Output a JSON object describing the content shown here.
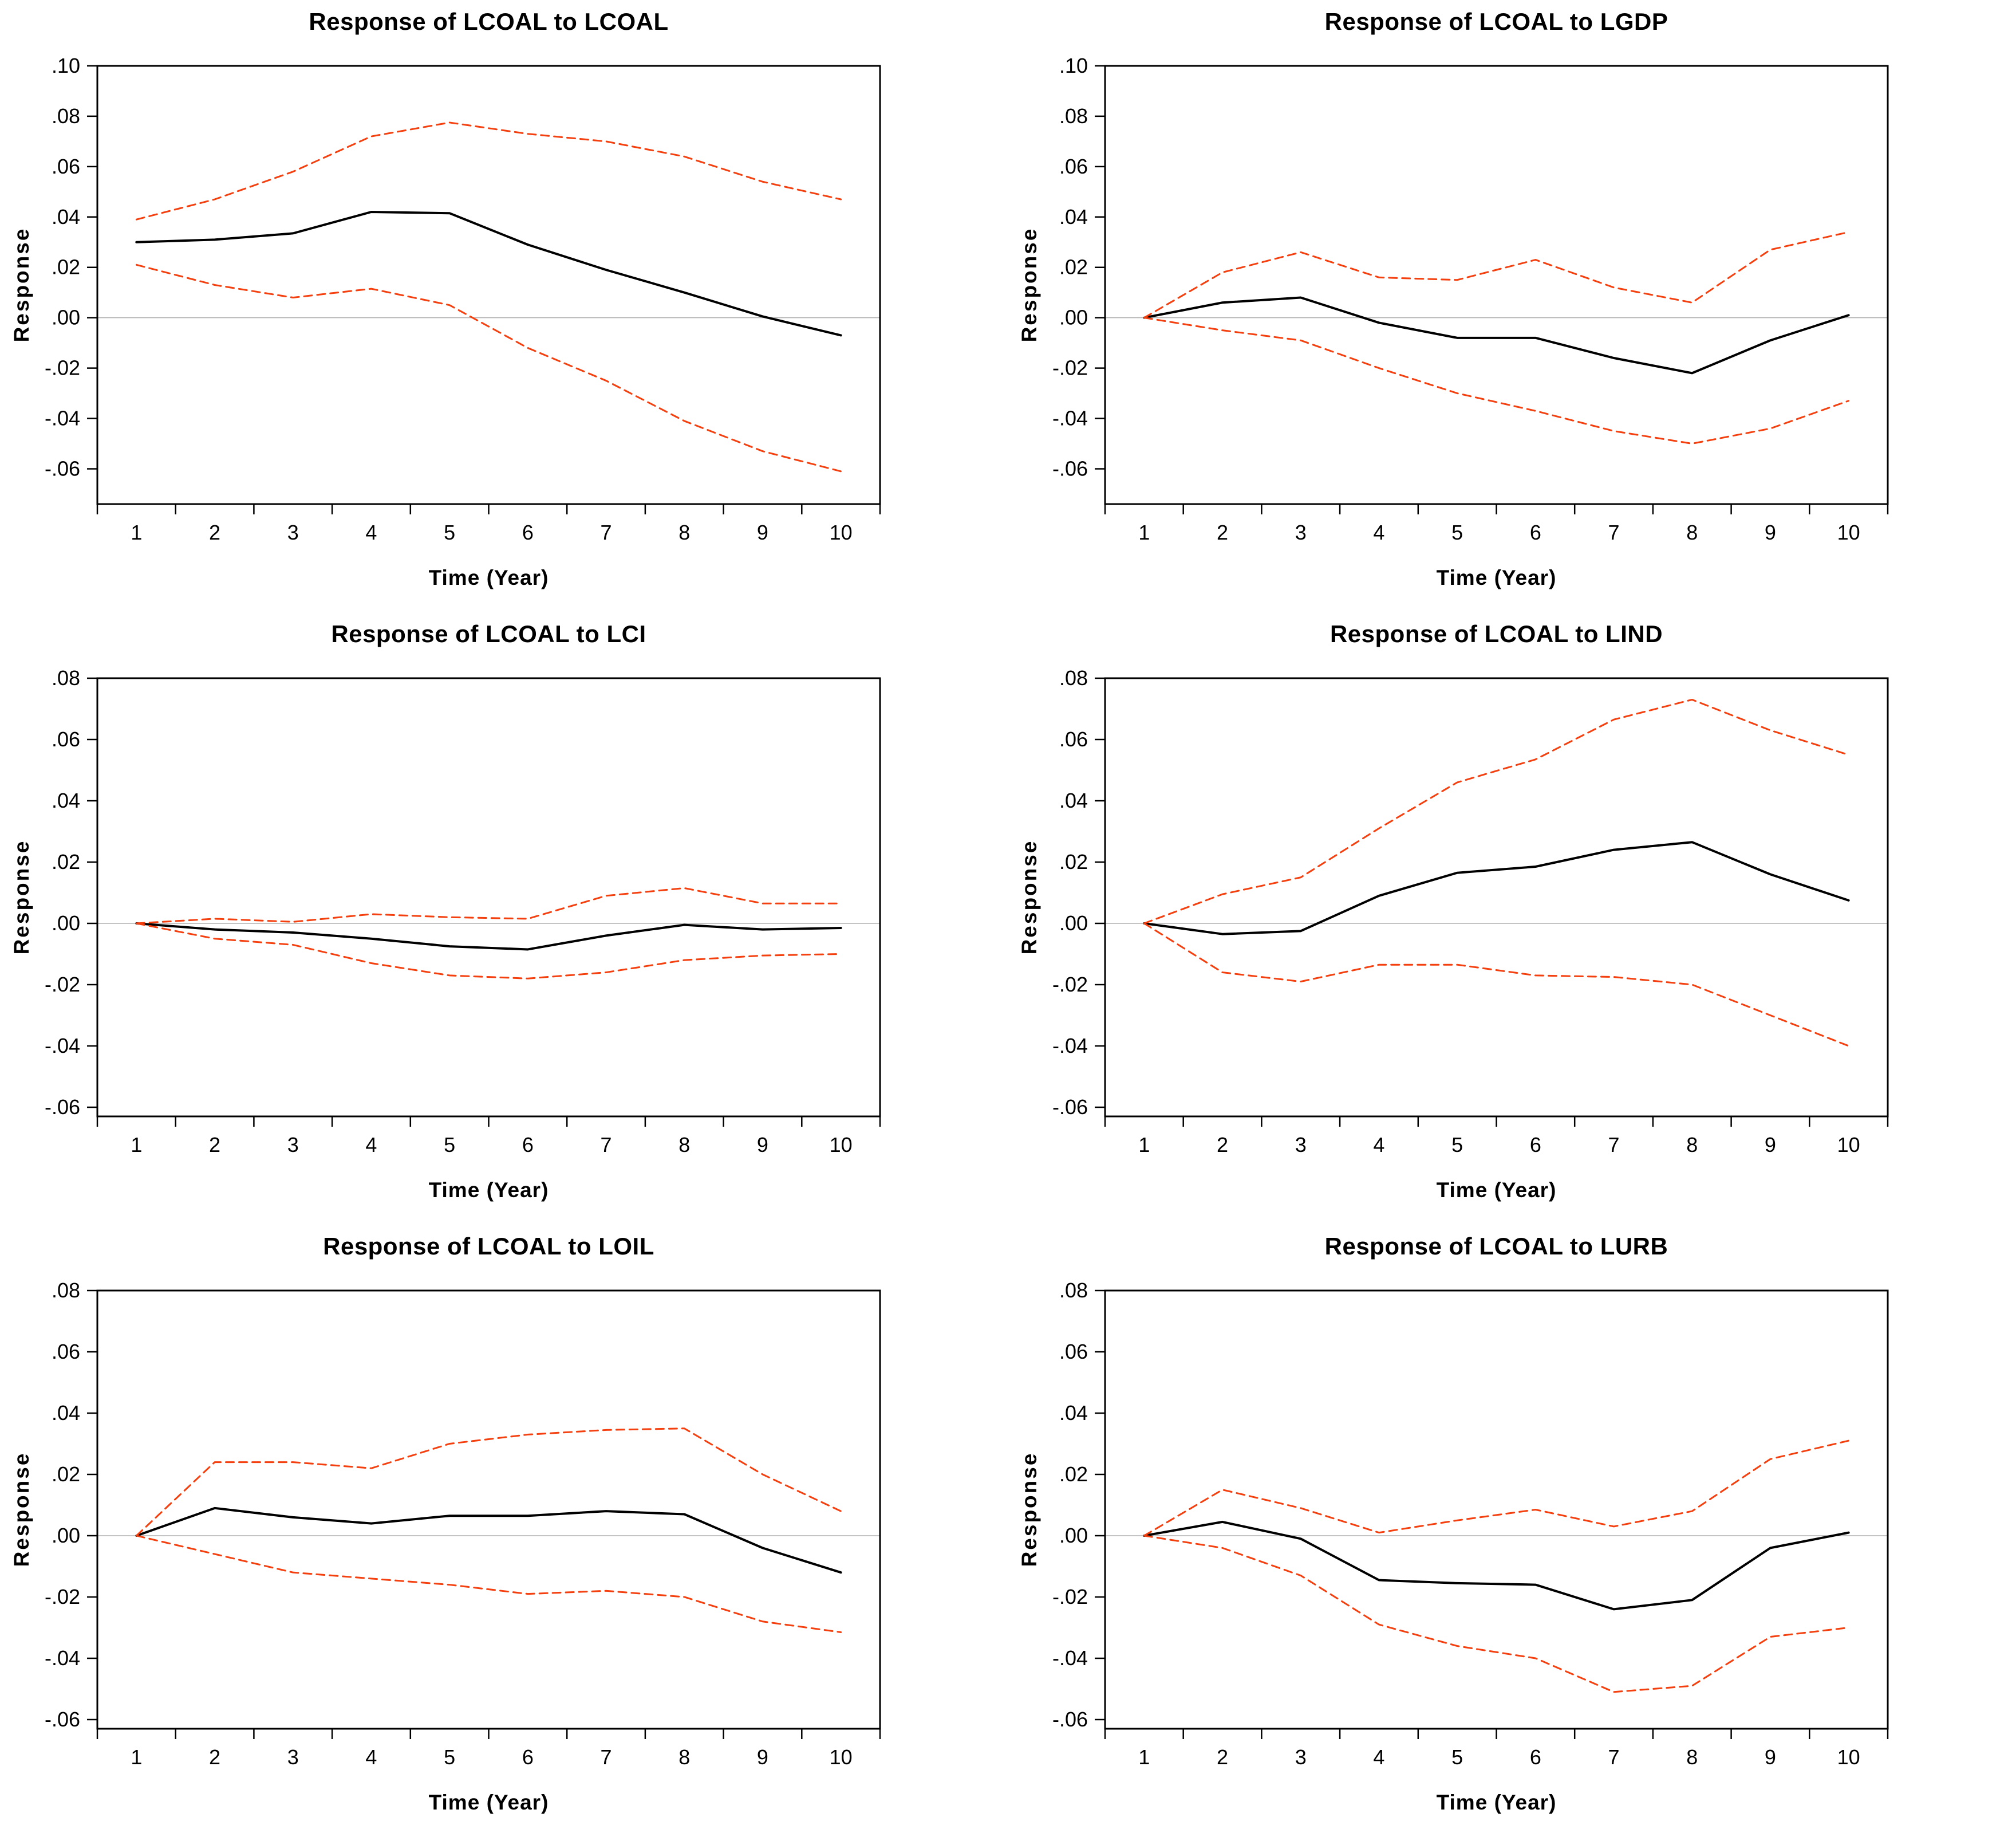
{
  "figure": {
    "ylabel": "Response",
    "xlabel": "Time (Year)",
    "colors": {
      "estimate_line": "#000000",
      "confidence_band": "#f43f0f",
      "zero_line": "#b0b0b0",
      "frame": "#000000",
      "background": "#ffffff"
    }
  },
  "chart_data": [
    {
      "type": "line",
      "title": "Response of LCOAL to LCOAL",
      "xlabel": "Time (Year)",
      "ylabel": "Response",
      "categories": [
        "1",
        "2",
        "3",
        "4",
        "5",
        "6",
        "7",
        "8",
        "9",
        "10"
      ],
      "x": [
        1,
        2,
        3,
        4,
        5,
        6,
        7,
        8,
        9,
        10
      ],
      "ylim": [
        -0.074,
        0.1
      ],
      "yticks": [
        0.1,
        0.08,
        0.06,
        0.04,
        0.02,
        0.0,
        -0.02,
        -0.04,
        -0.06
      ],
      "ytick_labels": [
        ".10",
        ".08",
        ".06",
        ".04",
        ".02",
        ".00",
        "-.02",
        "-.04",
        "-.06"
      ],
      "grid": false,
      "legend": "none",
      "series": [
        {
          "name": "estimate",
          "color": "#000000",
          "dashed": false,
          "values": [
            0.03,
            0.031,
            0.0335,
            0.042,
            0.0415,
            0.029,
            0.019,
            0.01,
            0.0005,
            -0.007
          ]
        },
        {
          "name": "upper_band",
          "color": "#f43f0f",
          "dashed": true,
          "values": [
            0.039,
            0.047,
            0.058,
            0.072,
            0.0775,
            0.073,
            0.07,
            0.064,
            0.054,
            0.047
          ]
        },
        {
          "name": "lower_band",
          "color": "#f43f0f",
          "dashed": true,
          "values": [
            0.021,
            0.013,
            0.008,
            0.0115,
            0.005,
            -0.012,
            -0.025,
            -0.041,
            -0.053,
            -0.061
          ]
        }
      ]
    },
    {
      "type": "line",
      "title": "Response of LCOAL to LGDP",
      "xlabel": "Time (Year)",
      "ylabel": "Response",
      "categories": [
        "1",
        "2",
        "3",
        "4",
        "5",
        "6",
        "7",
        "8",
        "9",
        "10"
      ],
      "x": [
        1,
        2,
        3,
        4,
        5,
        6,
        7,
        8,
        9,
        10
      ],
      "ylim": [
        -0.074,
        0.1
      ],
      "yticks": [
        0.1,
        0.08,
        0.06,
        0.04,
        0.02,
        0.0,
        -0.02,
        -0.04,
        -0.06
      ],
      "ytick_labels": [
        ".10",
        ".08",
        ".06",
        ".04",
        ".02",
        ".00",
        "-.02",
        "-.04",
        "-.06"
      ],
      "grid": false,
      "legend": "none",
      "series": [
        {
          "name": "estimate",
          "color": "#000000",
          "dashed": false,
          "values": [
            0.0,
            0.006,
            0.008,
            -0.002,
            -0.008,
            -0.008,
            -0.016,
            -0.022,
            -0.009,
            0.001
          ]
        },
        {
          "name": "upper_band",
          "color": "#f43f0f",
          "dashed": true,
          "values": [
            0.0,
            0.018,
            0.026,
            0.016,
            0.015,
            0.023,
            0.012,
            0.006,
            0.027,
            0.034
          ]
        },
        {
          "name": "lower_band",
          "color": "#f43f0f",
          "dashed": true,
          "values": [
            0.0,
            -0.005,
            -0.009,
            -0.02,
            -0.03,
            -0.037,
            -0.045,
            -0.05,
            -0.044,
            -0.033
          ]
        }
      ]
    },
    {
      "type": "line",
      "title": "Response of LCOAL to LCI",
      "xlabel": "Time (Year)",
      "ylabel": "Response",
      "categories": [
        "1",
        "2",
        "3",
        "4",
        "5",
        "6",
        "7",
        "8",
        "9",
        "10"
      ],
      "x": [
        1,
        2,
        3,
        4,
        5,
        6,
        7,
        8,
        9,
        10
      ],
      "ylim": [
        -0.063,
        0.08
      ],
      "yticks": [
        0.08,
        0.06,
        0.04,
        0.02,
        0.0,
        -0.02,
        -0.04,
        -0.06
      ],
      "ytick_labels": [
        ".08",
        ".06",
        ".04",
        ".02",
        ".00",
        "-.02",
        "-.04",
        "-.06"
      ],
      "grid": false,
      "legend": "none",
      "series": [
        {
          "name": "estimate",
          "color": "#000000",
          "dashed": false,
          "values": [
            0.0,
            -0.002,
            -0.003,
            -0.005,
            -0.0075,
            -0.0085,
            -0.004,
            -0.0005,
            -0.002,
            -0.0015
          ]
        },
        {
          "name": "upper_band",
          "color": "#f43f0f",
          "dashed": true,
          "values": [
            0.0,
            0.0015,
            0.0005,
            0.003,
            0.002,
            0.0015,
            0.009,
            0.0115,
            0.0065,
            0.0065
          ]
        },
        {
          "name": "lower_band",
          "color": "#f43f0f",
          "dashed": true,
          "values": [
            0.0,
            -0.005,
            -0.007,
            -0.013,
            -0.017,
            -0.018,
            -0.016,
            -0.012,
            -0.0105,
            -0.01
          ]
        }
      ]
    },
    {
      "type": "line",
      "title": "Response of LCOAL to LIND",
      "xlabel": "Time (Year)",
      "ylabel": "Response",
      "categories": [
        "1",
        "2",
        "3",
        "4",
        "5",
        "6",
        "7",
        "8",
        "9",
        "10"
      ],
      "x": [
        1,
        2,
        3,
        4,
        5,
        6,
        7,
        8,
        9,
        10
      ],
      "ylim": [
        -0.063,
        0.08
      ],
      "yticks": [
        0.08,
        0.06,
        0.04,
        0.02,
        0.0,
        -0.02,
        -0.04,
        -0.06
      ],
      "ytick_labels": [
        ".08",
        ".06",
        ".04",
        ".02",
        ".00",
        "-.02",
        "-.04",
        "-.06"
      ],
      "grid": false,
      "legend": "none",
      "series": [
        {
          "name": "estimate",
          "color": "#000000",
          "dashed": false,
          "values": [
            0.0,
            -0.0035,
            -0.0025,
            0.009,
            0.0165,
            0.0185,
            0.024,
            0.0265,
            0.016,
            0.0075
          ]
        },
        {
          "name": "upper_band",
          "color": "#f43f0f",
          "dashed": true,
          "values": [
            0.0,
            0.0095,
            0.015,
            0.031,
            0.046,
            0.0535,
            0.0665,
            0.073,
            0.063,
            0.055
          ]
        },
        {
          "name": "lower_band",
          "color": "#f43f0f",
          "dashed": true,
          "values": [
            0.0,
            -0.016,
            -0.019,
            -0.0135,
            -0.0135,
            -0.017,
            -0.0175,
            -0.02,
            -0.03,
            -0.04
          ]
        }
      ]
    },
    {
      "type": "line",
      "title": "Response of LCOAL to LOIL",
      "xlabel": "Time (Year)",
      "ylabel": "Response",
      "categories": [
        "1",
        "2",
        "3",
        "4",
        "5",
        "6",
        "7",
        "8",
        "9",
        "10"
      ],
      "x": [
        1,
        2,
        3,
        4,
        5,
        6,
        7,
        8,
        9,
        10
      ],
      "ylim": [
        -0.063,
        0.08
      ],
      "yticks": [
        0.08,
        0.06,
        0.04,
        0.02,
        0.0,
        -0.02,
        -0.04,
        -0.06
      ],
      "ytick_labels": [
        ".08",
        ".06",
        ".04",
        ".02",
        ".00",
        "-.02",
        "-.04",
        "-.06"
      ],
      "grid": false,
      "legend": "none",
      "series": [
        {
          "name": "estimate",
          "color": "#000000",
          "dashed": false,
          "values": [
            0.0,
            0.009,
            0.006,
            0.004,
            0.0065,
            0.0065,
            0.008,
            0.007,
            -0.004,
            -0.012
          ]
        },
        {
          "name": "upper_band",
          "color": "#f43f0f",
          "dashed": true,
          "values": [
            0.0,
            0.024,
            0.024,
            0.022,
            0.03,
            0.033,
            0.0345,
            0.035,
            0.02,
            0.008
          ]
        },
        {
          "name": "lower_band",
          "color": "#f43f0f",
          "dashed": true,
          "values": [
            0.0,
            -0.006,
            -0.012,
            -0.014,
            -0.016,
            -0.019,
            -0.018,
            -0.02,
            -0.028,
            -0.0315
          ]
        }
      ]
    },
    {
      "type": "line",
      "title": "Response of LCOAL to LURB",
      "xlabel": "Time (Year)",
      "ylabel": "Response",
      "categories": [
        "1",
        "2",
        "3",
        "4",
        "5",
        "6",
        "7",
        "8",
        "9",
        "10"
      ],
      "x": [
        1,
        2,
        3,
        4,
        5,
        6,
        7,
        8,
        9,
        10
      ],
      "ylim": [
        -0.063,
        0.08
      ],
      "yticks": [
        0.08,
        0.06,
        0.04,
        0.02,
        0.0,
        -0.02,
        -0.04,
        -0.06
      ],
      "ytick_labels": [
        ".08",
        ".06",
        ".04",
        ".02",
        ".00",
        "-.02",
        "-.04",
        "-.06"
      ],
      "grid": false,
      "legend": "none",
      "series": [
        {
          "name": "estimate",
          "color": "#000000",
          "dashed": false,
          "values": [
            0.0,
            0.0045,
            -0.001,
            -0.0145,
            -0.0155,
            -0.016,
            -0.024,
            -0.021,
            -0.004,
            0.001
          ]
        },
        {
          "name": "upper_band",
          "color": "#f43f0f",
          "dashed": true,
          "values": [
            0.0,
            0.015,
            0.009,
            0.001,
            0.005,
            0.0085,
            0.003,
            0.008,
            0.025,
            0.031
          ]
        },
        {
          "name": "lower_band",
          "color": "#f43f0f",
          "dashed": true,
          "values": [
            0.0,
            -0.004,
            -0.013,
            -0.029,
            -0.036,
            -0.04,
            -0.051,
            -0.049,
            -0.033,
            -0.03
          ]
        }
      ]
    }
  ]
}
